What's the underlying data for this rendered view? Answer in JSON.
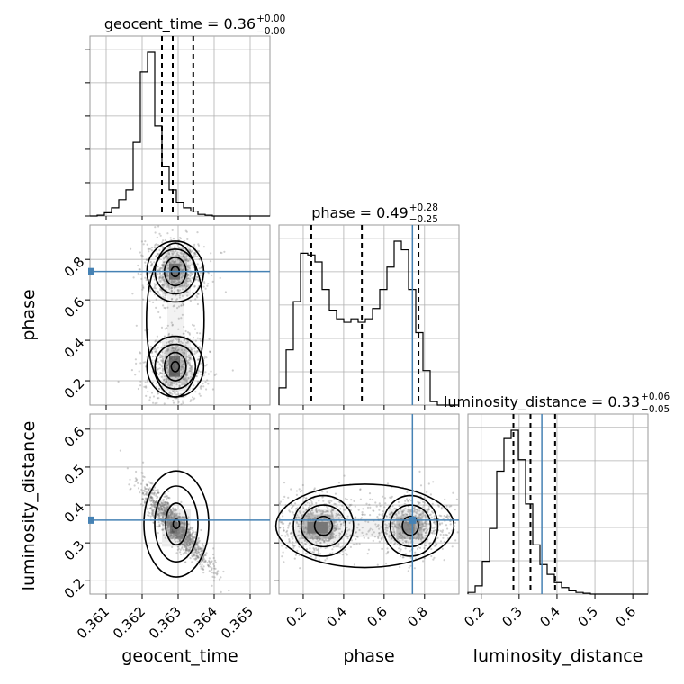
{
  "chart_data": {
    "type": "scatter",
    "subtype": "corner",
    "parameters": [
      "geocent_time",
      "phase",
      "luminosity_distance"
    ],
    "titles": {
      "geocent_time": {
        "name": "geocent_time",
        "median": "0.36",
        "plus": "+0.00",
        "minus": "−0.00"
      },
      "phase": {
        "name": "phase",
        "median": "0.49",
        "plus": "+0.28",
        "minus": "−0.25"
      },
      "luminosity_distance": {
        "name": "luminosity_distance",
        "median": "0.33",
        "plus": "+0.06",
        "minus": "−0.05"
      }
    },
    "ranges": {
      "geocent_time": [
        0.36055,
        0.36555
      ],
      "phase": [
        0.08,
        0.97
      ],
      "luminosity_distance": [
        0.165,
        0.64
      ]
    },
    "ticks": {
      "geocent_time": [
        0.361,
        0.362,
        0.363,
        0.364,
        0.365
      ],
      "phase": [
        0.2,
        0.4,
        0.6,
        0.8
      ],
      "luminosity_distance": [
        0.2,
        0.3,
        0.4,
        0.5,
        0.6
      ]
    },
    "tick_labels": {
      "geocent_time": [
        "0.361",
        "0.362",
        "0.363",
        "0.364",
        "0.365"
      ],
      "phase": [
        "0.2",
        "0.4",
        "0.6",
        "0.8"
      ],
      "luminosity_distance": [
        "0.2",
        "0.3",
        "0.4",
        "0.5",
        "0.6"
      ]
    },
    "truths": {
      "geocent_time": null,
      "phase": 0.74,
      "luminosity_distance": 0.36
    },
    "quantiles": {
      "geocent_time": [
        0.36255,
        0.36285,
        0.36342
      ],
      "phase": [
        0.24,
        0.49,
        0.77
      ],
      "luminosity_distance": [
        0.285,
        0.33,
        0.395
      ]
    },
    "histograms": {
      "geocent_time": {
        "edges_start": 0.36055,
        "bin_width": 0.0002,
        "heights": [
          0,
          0.005,
          0.02,
          0.05,
          0.1,
          0.16,
          0.45,
          0.88,
          1.0,
          0.55,
          0.3,
          0.16,
          0.08,
          0.05,
          0.03,
          0.01,
          0.005,
          0,
          0,
          0,
          0,
          0,
          0,
          0,
          0
        ]
      },
      "phase": {
        "edges_start": 0.08,
        "bin_width": 0.0356,
        "heights": [
          0.1,
          0.32,
          0.6,
          0.88,
          0.87,
          0.83,
          0.67,
          0.55,
          0.5,
          0.48,
          0.5,
          0.48,
          0.5,
          0.56,
          0.67,
          0.8,
          0.95,
          0.9,
          0.67,
          0.42,
          0.2,
          0.02,
          0,
          0,
          0
        ]
      },
      "luminosity_distance": {
        "edges_start": 0.165,
        "bin_width": 0.019,
        "heights": [
          0.01,
          0.05,
          0.2,
          0.4,
          0.75,
          0.95,
          1.0,
          0.82,
          0.55,
          0.3,
          0.18,
          0.12,
          0.07,
          0.04,
          0.02,
          0.01,
          0.005,
          0,
          0,
          0,
          0,
          0,
          0,
          0,
          0
        ]
      }
    },
    "grid": true
  }
}
